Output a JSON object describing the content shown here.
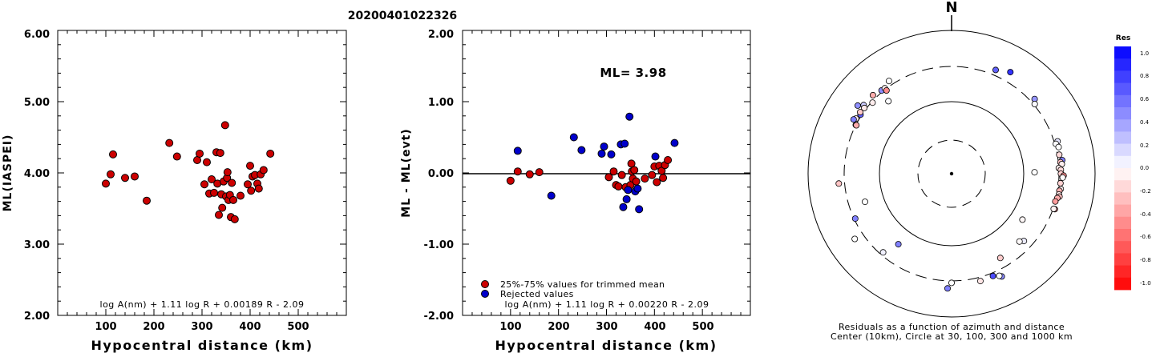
{
  "figure_title": "20200401022326",
  "panel1": {
    "ylabel": "ML(IASPEI)",
    "xlabel": "Hypocentral distance (km)",
    "formula": "log A(nm) + 1.11 log R + 0.00189 R - 2.09",
    "yticks": [
      "6.00",
      "5.00",
      "4.00",
      "3.00",
      "2.00"
    ],
    "xticks": [
      "100",
      "200",
      "300",
      "400",
      "500"
    ]
  },
  "panel2": {
    "ylabel": "ML - ML(evt)",
    "xlabel": "Hypocentral distance (km)",
    "formula": "log A(nm) + 1.11 log R + 0.00220 R - 2.09",
    "ml_label": "ML= 3.98",
    "legend_used": "25%-75% values for trimmed mean",
    "legend_rejected": "Rejected values",
    "yticks": [
      "2.00",
      "1.00",
      "0.00",
      "-1.00",
      "-2.00"
    ],
    "xticks": [
      "100",
      "200",
      "300",
      "400",
      "500"
    ]
  },
  "panel3": {
    "north": "N",
    "caption1": "Residuals as a function of azimuth and distance",
    "caption2": "Center (10km), Circle at 30, 100, 300 and 1000 km",
    "colorbar_title": "Res",
    "colorbar_labels": [
      "1.0",
      "0.8",
      "0.6",
      "0.4",
      "0.2",
      "0.0",
      "-0.2",
      "-0.4",
      "-0.6",
      "-0.8",
      "-1.0"
    ]
  },
  "colors": {
    "used": "#cc0000",
    "rejected": "#0000cc",
    "positive": "#0000ff",
    "negative": "#ff0000"
  },
  "chart_data": [
    {
      "type": "scatter",
      "xlabel": "Hypocentral distance (km)",
      "ylabel": "ML(IASPEI)",
      "xlim": [
        0,
        600
      ],
      "ylim": [
        2.0,
        6.0
      ],
      "points": [
        [
          100,
          3.85
        ],
        [
          110,
          3.98
        ],
        [
          115,
          4.26
        ],
        [
          140,
          3.93
        ],
        [
          160,
          3.95
        ],
        [
          185,
          3.61
        ],
        [
          232,
          4.42
        ],
        [
          248,
          4.23
        ],
        [
          290,
          4.18
        ],
        [
          295,
          4.27
        ],
        [
          305,
          3.84
        ],
        [
          310,
          4.15
        ],
        [
          315,
          3.71
        ],
        [
          320,
          3.91
        ],
        [
          325,
          3.72
        ],
        [
          330,
          4.29
        ],
        [
          332,
          3.85
        ],
        [
          335,
          3.41
        ],
        [
          338,
          4.28
        ],
        [
          340,
          3.7
        ],
        [
          342,
          3.51
        ],
        [
          345,
          3.88
        ],
        [
          348,
          4.67
        ],
        [
          350,
          3.67
        ],
        [
          352,
          3.93
        ],
        [
          353,
          4.01
        ],
        [
          355,
          3.62
        ],
        [
          358,
          3.69
        ],
        [
          360,
          3.38
        ],
        [
          362,
          3.86
        ],
        [
          365,
          3.62
        ],
        [
          368,
          3.35
        ],
        [
          380,
          3.68
        ],
        [
          395,
          3.84
        ],
        [
          400,
          4.1
        ],
        [
          402,
          3.75
        ],
        [
          405,
          3.95
        ],
        [
          410,
          3.97
        ],
        [
          415,
          3.85
        ],
        [
          418,
          3.78
        ],
        [
          422,
          3.98
        ],
        [
          428,
          4.04
        ],
        [
          442,
          4.27
        ]
      ]
    },
    {
      "type": "scatter",
      "xlabel": "Hypocentral distance (km)",
      "ylabel": "ML - ML(evt)",
      "xlim": [
        0,
        600
      ],
      "ylim": [
        -2.0,
        2.0
      ],
      "hline": 0.0,
      "series": [
        {
          "name": "25%-75% values for trimmed mean",
          "points": [
            [
              100,
              -0.11
            ],
            [
              115,
              0.02
            ],
            [
              140,
              -0.02
            ],
            [
              160,
              0.01
            ],
            [
              305,
              -0.06
            ],
            [
              315,
              0.02
            ],
            [
              320,
              -0.17
            ],
            [
              325,
              -0.19
            ],
            [
              332,
              -0.03
            ],
            [
              340,
              -0.2
            ],
            [
              350,
              -0.17
            ],
            [
              352,
              0.13
            ],
            [
              353,
              0.02
            ],
            [
              355,
              -0.08
            ],
            [
              358,
              0.04
            ],
            [
              362,
              -0.12
            ],
            [
              380,
              -0.08
            ],
            [
              395,
              -0.03
            ],
            [
              400,
              0.09
            ],
            [
              405,
              -0.13
            ],
            [
              410,
              0.1
            ],
            [
              415,
              0.03
            ],
            [
              418,
              -0.07
            ],
            [
              422,
              0.11
            ],
            [
              428,
              0.18
            ]
          ]
        },
        {
          "name": "Rejected values",
          "points": [
            [
              115,
              0.31
            ],
            [
              185,
              -0.32
            ],
            [
              232,
              0.5
            ],
            [
              248,
              0.32
            ],
            [
              290,
              0.27
            ],
            [
              295,
              0.37
            ],
            [
              310,
              0.26
            ],
            [
              330,
              0.4
            ],
            [
              335,
              -0.48
            ],
            [
              338,
              0.41
            ],
            [
              342,
              -0.37
            ],
            [
              345,
              -0.24
            ],
            [
              348,
              0.79
            ],
            [
              360,
              -0.26
            ],
            [
              365,
              -0.22
            ],
            [
              368,
              -0.51
            ],
            [
              402,
              0.23
            ],
            [
              442,
              0.42
            ]
          ]
        }
      ]
    },
    {
      "type": "scatter",
      "title": "Residuals as a function of azimuth and distance",
      "coordinates": "polar",
      "units": [
        "azimuth_deg",
        "distance_km",
        "residual"
      ],
      "rings_km": [
        30,
        100,
        300,
        1000
      ],
      "points": [
        [
          -57,
          312,
          0.62
        ],
        [
          -54,
          400,
          0.44
        ],
        [
          -48,
          290,
          -0.07
        ],
        [
          -52,
          345,
          0.2
        ],
        [
          -53,
          320,
          -0.08
        ],
        [
          -56,
          330,
          -0.21
        ],
        [
          -60,
          332,
          -0.08
        ],
        [
          -61,
          350,
          0.5
        ],
        [
          -63,
          301,
          -0.12
        ],
        [
          -63,
          295,
          -0.33
        ],
        [
          -41,
          212,
          0.01
        ],
        [
          -40,
          315,
          0.45
        ],
        [
          -38,
          311,
          -0.05
        ],
        [
          23,
          360,
          0.62
        ],
        [
          30,
          420,
          0.8
        ],
        [
          48,
          347,
          0.41
        ],
        [
          50,
          311,
          0.02
        ],
        [
          73,
          336,
          0.1
        ],
        [
          74,
          311,
          0.01
        ],
        [
          76,
          330,
          0.0
        ],
        [
          80,
          320,
          -0.15
        ],
        [
          83,
          343,
          0.5
        ],
        [
          84,
          321,
          -0.25
        ],
        [
          85,
          334,
          -0.07
        ],
        [
          87,
          300,
          -0.08
        ],
        [
          88,
          320,
          -0.15
        ],
        [
          89,
          140,
          0.0
        ],
        [
          90,
          320,
          -0.19
        ],
        [
          91,
          350,
          -0.44
        ],
        [
          92,
          340,
          -0.01
        ],
        [
          95,
          319,
          -0.18
        ],
        [
          98,
          330,
          -0.06
        ],
        [
          99,
          318,
          -0.31
        ],
        [
          101,
          320,
          -0.08
        ],
        [
          102,
          330,
          -0.26
        ],
        [
          103,
          311,
          -0.33
        ],
        [
          105,
          300,
          -0.39
        ],
        [
          109,
          318,
          -0.45
        ],
        [
          109,
          306,
          -0.05
        ],
        [
          123,
          147,
          -0.03
        ],
        [
          133,
          230,
          0.08
        ],
        [
          135,
          210,
          -0.02
        ],
        [
          154,
          380,
          0.45
        ],
        [
          155,
          360,
          0.0
        ],
        [
          158,
          332,
          0.7
        ],
        [
          165,
          341,
          -0.1
        ],
        [
          180,
          320,
          0.0
        ],
        [
          182,
          386,
          0.5
        ],
        [
          217,
          166,
          0.5
        ],
        [
          221,
          273,
          0.06
        ],
        [
          236,
          410,
          0.0
        ],
        [
          245,
          290,
          0.5
        ],
        [
          252,
          180,
          0.0
        ],
        [
          265,
          364,
          -0.23
        ],
        [
          315,
          340,
          -0.32
        ],
        [
          322,
          285,
          -0.45
        ],
        [
          326,
          349,
          0.0
        ],
        [
          150,
          220,
          -0.2
        ]
      ]
    }
  ]
}
